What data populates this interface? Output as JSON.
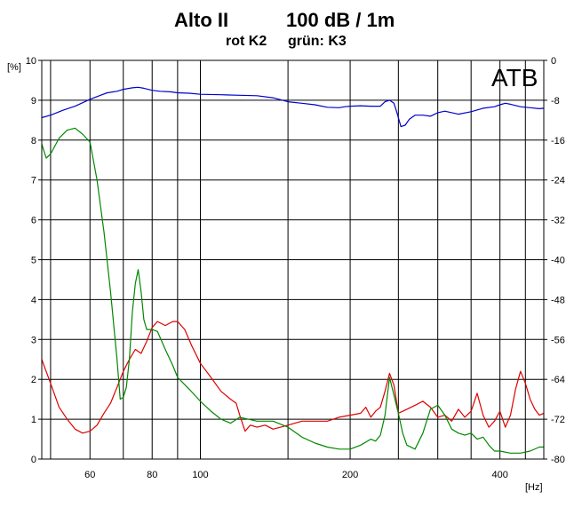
{
  "chart_data": {
    "type": "line",
    "title_left": "Alto II",
    "title_right": "100 dB / 1m",
    "subtitle_left": "rot K2",
    "subtitle_right": "grün: K3",
    "watermark": "ATB",
    "ylabel": "[%]",
    "xlabel": "[Hz]",
    "x_scale": "log",
    "xlim": [
      48,
      490
    ],
    "ylim": [
      0,
      10
    ],
    "y2lim": [
      -80,
      0
    ],
    "grid": true,
    "x_major": [
      50,
      100,
      500
    ],
    "x_minor": [
      60,
      70,
      80,
      90,
      150,
      200,
      250,
      300,
      350,
      400,
      450
    ],
    "x_tick_labels": [
      "60",
      "80",
      "100",
      "200",
      "400"
    ],
    "x_tick_values": [
      60,
      80,
      100,
      200,
      400
    ],
    "y_ticks": [
      0,
      1,
      2,
      3,
      4,
      5,
      6,
      7,
      8,
      9,
      10
    ],
    "y2_ticks": [
      0,
      -8,
      -16,
      -24,
      -32,
      -40,
      -48,
      -56,
      -64,
      -72,
      -80
    ],
    "series": [
      {
        "color": "#0000cc",
        "axis": "right",
        "points": [
          [
            48,
            -11.5
          ],
          [
            50,
            -11
          ],
          [
            53,
            -10
          ],
          [
            56,
            -9.2
          ],
          [
            58,
            -8.5
          ],
          [
            60,
            -7.8
          ],
          [
            63,
            -7
          ],
          [
            65,
            -6.5
          ],
          [
            68,
            -6.2
          ],
          [
            70,
            -5.8
          ],
          [
            73,
            -5.5
          ],
          [
            75,
            -5.4
          ],
          [
            77,
            -5.6
          ],
          [
            80,
            -6
          ],
          [
            83,
            -6.2
          ],
          [
            87,
            -6.3
          ],
          [
            90,
            -6.5
          ],
          [
            95,
            -6.6
          ],
          [
            100,
            -6.8
          ],
          [
            110,
            -6.9
          ],
          [
            120,
            -7
          ],
          [
            130,
            -7.1
          ],
          [
            140,
            -7.5
          ],
          [
            150,
            -8.3
          ],
          [
            160,
            -8.6
          ],
          [
            170,
            -8.9
          ],
          [
            180,
            -9.4
          ],
          [
            190,
            -9.5
          ],
          [
            195,
            -9.3
          ],
          [
            200,
            -9.2
          ],
          [
            210,
            -9.1
          ],
          [
            220,
            -9.2
          ],
          [
            230,
            -9.2
          ],
          [
            235,
            -8.3
          ],
          [
            240,
            -8.0
          ],
          [
            245,
            -8.6
          ],
          [
            248,
            -10.3
          ],
          [
            253,
            -13.3
          ],
          [
            258,
            -13.0
          ],
          [
            263,
            -11.8
          ],
          [
            270,
            -11.0
          ],
          [
            280,
            -11.0
          ],
          [
            290,
            -11.2
          ],
          [
            300,
            -10.5
          ],
          [
            310,
            -10.2
          ],
          [
            320,
            -10.5
          ],
          [
            330,
            -10.8
          ],
          [
            350,
            -10.3
          ],
          [
            370,
            -9.6
          ],
          [
            390,
            -9.3
          ],
          [
            400,
            -8.9
          ],
          [
            410,
            -8.6
          ],
          [
            420,
            -8.8
          ],
          [
            440,
            -9.3
          ],
          [
            460,
            -9.5
          ],
          [
            480,
            -9.7
          ],
          [
            490,
            -9.6
          ]
        ]
      },
      {
        "color": "#dd0000",
        "axis": "left",
        "points": [
          [
            48,
            2.5
          ],
          [
            50,
            1.9
          ],
          [
            52,
            1.3
          ],
          [
            54,
            1.0
          ],
          [
            56,
            0.75
          ],
          [
            58,
            0.65
          ],
          [
            60,
            0.7
          ],
          [
            62,
            0.85
          ],
          [
            64,
            1.15
          ],
          [
            66,
            1.4
          ],
          [
            68,
            1.8
          ],
          [
            70,
            2.2
          ],
          [
            72,
            2.5
          ],
          [
            74,
            2.75
          ],
          [
            76,
            2.65
          ],
          [
            78,
            2.95
          ],
          [
            80,
            3.3
          ],
          [
            82,
            3.45
          ],
          [
            85,
            3.35
          ],
          [
            88,
            3.45
          ],
          [
            90,
            3.45
          ],
          [
            93,
            3.25
          ],
          [
            96,
            2.85
          ],
          [
            100,
            2.4
          ],
          [
            105,
            2.05
          ],
          [
            110,
            1.7
          ],
          [
            115,
            1.5
          ],
          [
            118,
            1.4
          ],
          [
            120,
            1.1
          ],
          [
            123,
            0.7
          ],
          [
            126,
            0.85
          ],
          [
            130,
            0.8
          ],
          [
            135,
            0.85
          ],
          [
            140,
            0.75
          ],
          [
            145,
            0.8
          ],
          [
            150,
            0.85
          ],
          [
            160,
            0.95
          ],
          [
            170,
            0.95
          ],
          [
            180,
            0.95
          ],
          [
            190,
            1.05
          ],
          [
            200,
            1.1
          ],
          [
            210,
            1.15
          ],
          [
            215,
            1.3
          ],
          [
            220,
            1.05
          ],
          [
            225,
            1.2
          ],
          [
            230,
            1.3
          ],
          [
            235,
            1.7
          ],
          [
            240,
            2.15
          ],
          [
            245,
            1.85
          ],
          [
            250,
            1.15
          ],
          [
            260,
            1.25
          ],
          [
            270,
            1.35
          ],
          [
            280,
            1.45
          ],
          [
            290,
            1.3
          ],
          [
            300,
            1.05
          ],
          [
            310,
            1.1
          ],
          [
            320,
            0.95
          ],
          [
            330,
            1.25
          ],
          [
            340,
            1.05
          ],
          [
            350,
            1.2
          ],
          [
            360,
            1.65
          ],
          [
            370,
            1.1
          ],
          [
            380,
            0.8
          ],
          [
            390,
            0.95
          ],
          [
            400,
            1.2
          ],
          [
            410,
            0.8
          ],
          [
            420,
            1.1
          ],
          [
            430,
            1.75
          ],
          [
            440,
            2.2
          ],
          [
            450,
            1.9
          ],
          [
            460,
            1.5
          ],
          [
            470,
            1.25
          ],
          [
            480,
            1.1
          ],
          [
            490,
            1.15
          ]
        ]
      },
      {
        "color": "#008800",
        "axis": "left",
        "points": [
          [
            48,
            7.9
          ],
          [
            49,
            7.55
          ],
          [
            50,
            7.65
          ],
          [
            52,
            8.05
          ],
          [
            54,
            8.25
          ],
          [
            56,
            8.3
          ],
          [
            58,
            8.15
          ],
          [
            60,
            7.95
          ],
          [
            62,
            7.0
          ],
          [
            64,
            5.7
          ],
          [
            66,
            4.2
          ],
          [
            68,
            2.5
          ],
          [
            69,
            1.5
          ],
          [
            70,
            1.55
          ],
          [
            71,
            1.8
          ],
          [
            72,
            2.5
          ],
          [
            73,
            3.7
          ],
          [
            74,
            4.4
          ],
          [
            75,
            4.75
          ],
          [
            76,
            4.2
          ],
          [
            77,
            3.5
          ],
          [
            78,
            3.25
          ],
          [
            80,
            3.25
          ],
          [
            82,
            3.2
          ],
          [
            85,
            2.75
          ],
          [
            88,
            2.35
          ],
          [
            90,
            2.05
          ],
          [
            95,
            1.75
          ],
          [
            100,
            1.45
          ],
          [
            105,
            1.2
          ],
          [
            110,
            1.0
          ],
          [
            115,
            0.9
          ],
          [
            120,
            1.05
          ],
          [
            130,
            0.95
          ],
          [
            140,
            0.95
          ],
          [
            150,
            0.8
          ],
          [
            160,
            0.55
          ],
          [
            170,
            0.4
          ],
          [
            180,
            0.3
          ],
          [
            190,
            0.25
          ],
          [
            200,
            0.25
          ],
          [
            210,
            0.35
          ],
          [
            220,
            0.5
          ],
          [
            225,
            0.45
          ],
          [
            230,
            0.6
          ],
          [
            235,
            1.1
          ],
          [
            240,
            2.05
          ],
          [
            245,
            1.6
          ],
          [
            250,
            1.15
          ],
          [
            255,
            0.65
          ],
          [
            260,
            0.35
          ],
          [
            270,
            0.25
          ],
          [
            280,
            0.65
          ],
          [
            290,
            1.25
          ],
          [
            300,
            1.35
          ],
          [
            310,
            1.1
          ],
          [
            320,
            0.75
          ],
          [
            330,
            0.65
          ],
          [
            340,
            0.6
          ],
          [
            350,
            0.65
          ],
          [
            360,
            0.5
          ],
          [
            370,
            0.55
          ],
          [
            380,
            0.35
          ],
          [
            390,
            0.2
          ],
          [
            400,
            0.2
          ],
          [
            420,
            0.15
          ],
          [
            440,
            0.15
          ],
          [
            460,
            0.2
          ],
          [
            480,
            0.3
          ],
          [
            490,
            0.3
          ]
        ]
      }
    ]
  }
}
